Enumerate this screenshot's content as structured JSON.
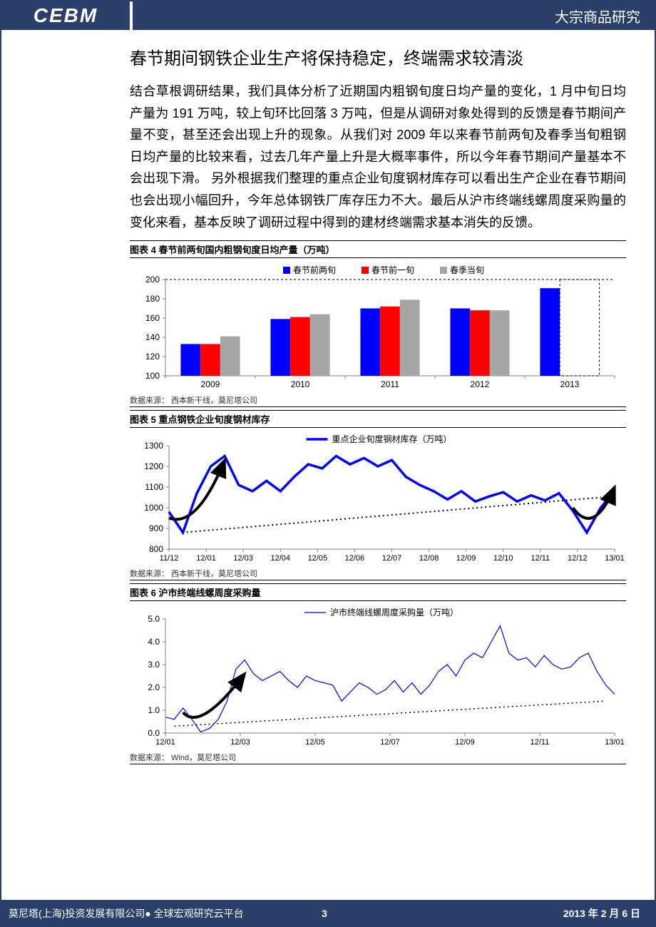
{
  "header": {
    "logo_text": "CEBM",
    "category": "大宗商品研究"
  },
  "main": {
    "title": "春节期间钢铁企业生产将保持稳定，终端需求较清淡",
    "body": "结合草根调研结果，我们具体分析了近期国内粗钢旬度日均产量的变化，1 月中旬日均产量为 191 万吨，较上旬环比回落 3 万吨，但是从调研对象处得到的反馈是春节期间产量不变，甚至还会出现上升的现象。从我们对 2009 年以来春节前两旬及春季当旬粗钢日均产量的比较来看，过去几年产量上升是大概率事件，所以今年春节期间产量基本不会出现下滑。 另外根据我们整理的重点企业旬度钢材库存可以看出生产企业在春节期间也会出现小幅回升，今年总体钢铁厂库存压力不大。最后从沪市终端线螺周度采购量的变化来看，基本反映了调研过程中得到的建材终端需求基本消失的反馈。"
  },
  "chart4": {
    "title": "图表 4 春节前两旬国内粗钢旬度日均产量（万吨）",
    "type": "bar",
    "legend": [
      "春节前两旬",
      "春节前一旬",
      "春季当旬"
    ],
    "legend_colors": [
      "#0000ff",
      "#ff0000",
      "#a6a6a6"
    ],
    "categories": [
      "2009",
      "2010",
      "2011",
      "2012",
      "2013"
    ],
    "series": [
      [
        133,
        159,
        170,
        170,
        191
      ],
      [
        133,
        161,
        172,
        168,
        null
      ],
      [
        141,
        164,
        179,
        168,
        null
      ]
    ],
    "dashed_bar_2013": 200,
    "ylim": [
      100,
      200
    ],
    "ytick_step": 20,
    "yticks": [
      100,
      120,
      140,
      160,
      180,
      200
    ],
    "bar_width": 0.22,
    "background_color": "#ffffff",
    "axis_color": "#808080",
    "tick_fontsize": 12,
    "source": "数据来源： 西本新干线，莫尼塔公司"
  },
  "chart5": {
    "title": "图表 5 重点钢铁企业旬度钢材库存",
    "type": "line",
    "legend_label": "重点企业旬度钢材库存（万吨）",
    "line_color": "#0000ff",
    "line_width": 3.5,
    "ylim": [
      800,
      1300
    ],
    "ytick_step": 100,
    "yticks": [
      800,
      900,
      1000,
      1100,
      1200,
      1300
    ],
    "x_labels": [
      "11/12",
      "12/01",
      "12/03",
      "12/04",
      "12/05",
      "12/06",
      "12/07",
      "12/08",
      "12/09",
      "12/10",
      "12/11",
      "12/12",
      "13/01"
    ],
    "data": [
      980,
      880,
      1070,
      1200,
      1250,
      1110,
      1080,
      1130,
      1080,
      1150,
      1210,
      1190,
      1250,
      1210,
      1240,
      1200,
      1230,
      1150,
      1110,
      1080,
      1040,
      1080,
      1030,
      1055,
      1075,
      1030,
      1060,
      1035,
      1070,
      985,
      880,
      1000,
      1080
    ],
    "trend_arrows": true,
    "dotted_trend": {
      "start_y": 880,
      "end_y": 1050
    },
    "background_color": "#ffffff",
    "axis_color": "#808080",
    "source": "数据来源： 西本新干线，莫尼塔公司"
  },
  "chart6": {
    "title": "图表 6 沪市终端线螺周度采购量",
    "type": "line",
    "legend_label": "沪市终端线螺周度采购量（万吨）",
    "line_color": "#0000ff",
    "line_width": 1.2,
    "ylim": [
      0,
      5
    ],
    "ytick_step": 1,
    "yticks": [
      "0.0",
      "1.0",
      "2.0",
      "3.0",
      "4.0",
      "5.0"
    ],
    "x_labels": [
      "12/01",
      "12/03",
      "12/05",
      "12/07",
      "12/09",
      "12/11",
      "13/01"
    ],
    "data": [
      0.7,
      0.6,
      1.1,
      0.6,
      0.05,
      0.2,
      0.6,
      1.4,
      2.8,
      3.2,
      2.6,
      2.3,
      2.5,
      2.7,
      2.3,
      2.0,
      2.5,
      2.3,
      2.2,
      2.1,
      1.4,
      1.8,
      2.2,
      2.0,
      1.7,
      1.9,
      2.3,
      1.8,
      2.2,
      1.7,
      2.1,
      2.7,
      3.0,
      2.5,
      3.2,
      3.5,
      3.3,
      4.0,
      4.7,
      3.5,
      3.2,
      3.3,
      2.9,
      3.4,
      3.0,
      2.8,
      2.9,
      3.3,
      3.5,
      2.7,
      2.1,
      1.7
    ],
    "trend_arrow": true,
    "dotted_trend": {
      "start_y": 0.3,
      "end_y": 1.4
    },
    "background_color": "#ffffff",
    "axis_color": "#808080",
    "source": "数据来源： Wind，莫尼塔公司"
  },
  "footer": {
    "left": "莫尼塔(上海)投资发展有限公司● 全球宏观研究云平台",
    "page": "3",
    "date": "2013 年 2 月 6 日"
  }
}
